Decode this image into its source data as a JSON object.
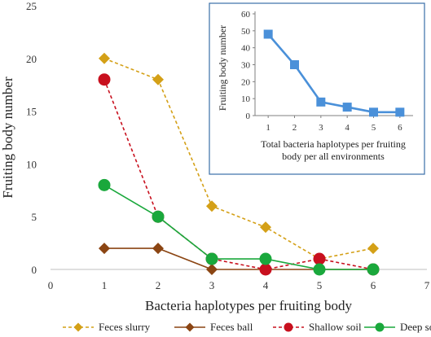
{
  "chart_data": [
    {
      "type": "line",
      "xlabel": "Bacteria haplotypes per fruiting body",
      "ylabel": "Fruiting body number",
      "xlim": [
        0,
        7
      ],
      "ylim": [
        0,
        25
      ],
      "xticks": [
        "0",
        "1",
        "2",
        "3",
        "4",
        "5",
        "6",
        "7"
      ],
      "yticks": [
        "0",
        "5",
        "10",
        "15",
        "20",
        "25"
      ],
      "grid": false,
      "legend_position": "bottom",
      "series": [
        {
          "name": "Feces slurry",
          "color": "#d4a017",
          "marker": "diamond",
          "line": "dashed",
          "x": [
            1,
            2,
            3,
            4,
            5,
            6
          ],
          "values": [
            20,
            18,
            6,
            4,
            1,
            2
          ]
        },
        {
          "name": "Feces ball",
          "color": "#8b4513",
          "marker": "diamond",
          "line": "solid",
          "x": [
            1,
            2,
            3,
            4,
            5,
            6
          ],
          "values": [
            2,
            2,
            0,
            0,
            0,
            0
          ]
        },
        {
          "name": "Shallow soil",
          "color": "#c8101e",
          "marker": "circle",
          "line": "dashed",
          "x": [
            1,
            2,
            3,
            4,
            5,
            6
          ],
          "values": [
            18,
            5,
            1,
            0,
            1,
            0
          ]
        },
        {
          "name": "Deep soil",
          "color": "#1aa83c",
          "marker": "circle",
          "line": "solid",
          "x": [
            1,
            2,
            3,
            4,
            5,
            6
          ],
          "values": [
            8,
            5,
            1,
            1,
            0,
            0
          ]
        }
      ]
    },
    {
      "type": "line",
      "xlabel_lines": [
        "Total bacteria haplotypes per fruiting",
        "body per all environments"
      ],
      "ylabel": "Fruiting body number",
      "xlim": [
        0.5,
        6.5
      ],
      "ylim": [
        0,
        60
      ],
      "xticks": [
        "1",
        "2",
        "3",
        "4",
        "5",
        "6"
      ],
      "yticks": [
        "0",
        "10",
        "20",
        "30",
        "40",
        "50",
        "60"
      ],
      "grid": false,
      "series": [
        {
          "color": "#4a90d9",
          "marker": "square",
          "line": "solid",
          "x": [
            1,
            2,
            3,
            4,
            5,
            6
          ],
          "values": [
            48,
            30,
            8,
            5,
            2,
            2
          ]
        }
      ]
    }
  ]
}
